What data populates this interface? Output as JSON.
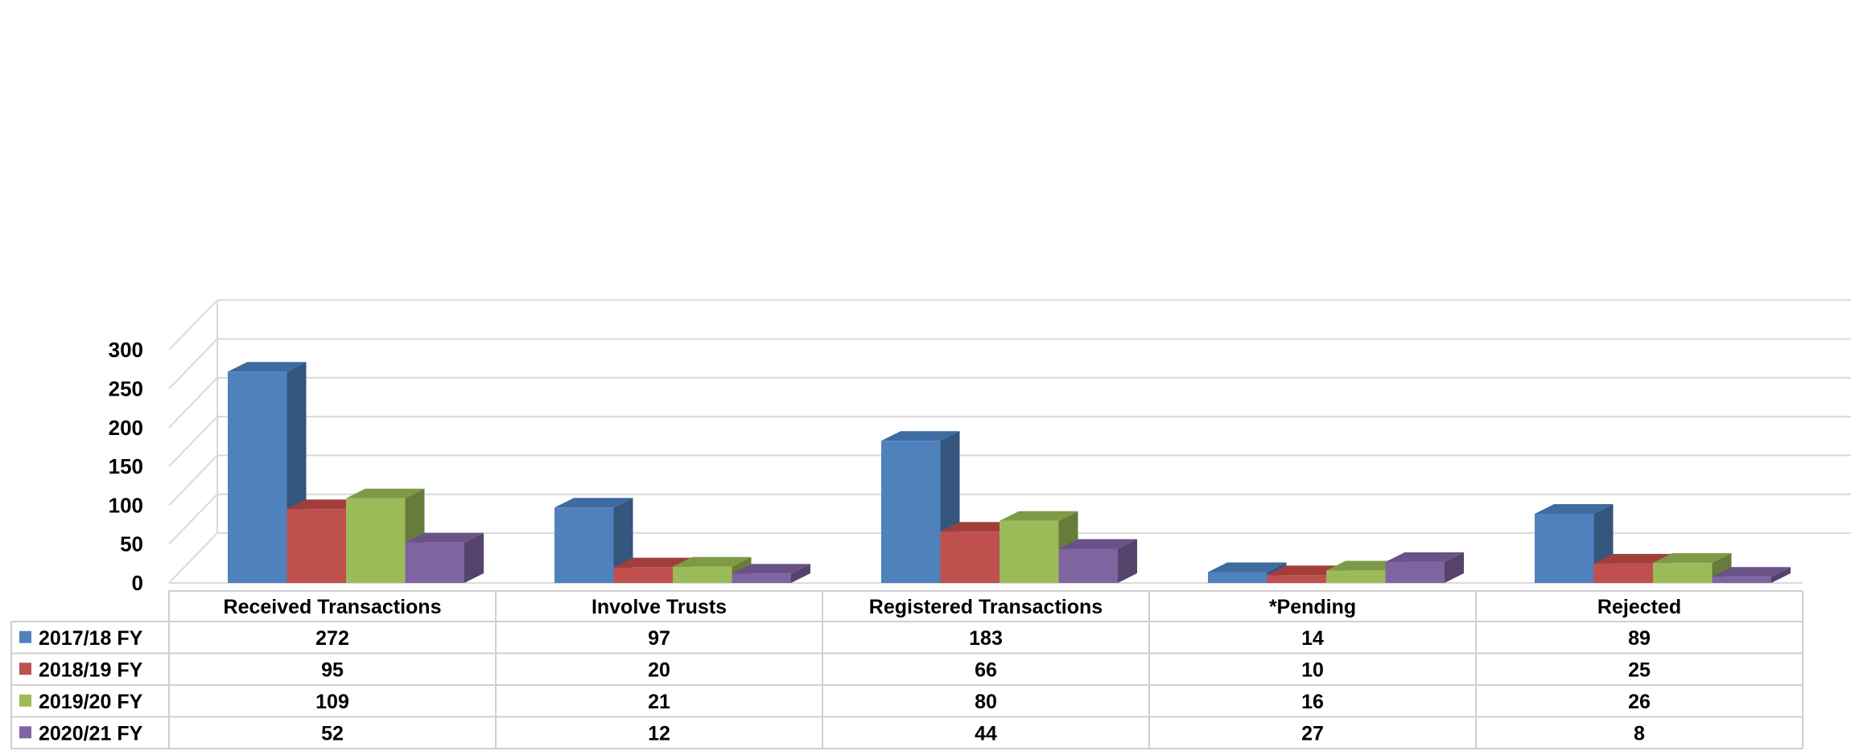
{
  "chart_data": {
    "type": "bar",
    "style": "3d-clustered-column-with-data-table",
    "categories": [
      "Received Transactions",
      "Involve Trusts",
      "Registered Transactions",
      "*Pending",
      "Rejected"
    ],
    "series": [
      {
        "name": "2017/18 FY",
        "values": [
          272,
          97,
          183,
          14,
          89
        ],
        "color": "#4F81BD",
        "side": "#34567E",
        "top": "#3E6BA0"
      },
      {
        "name": "2018/19 FY",
        "values": [
          95,
          20,
          66,
          10,
          25
        ],
        "color": "#C0504D",
        "side": "#7F3533",
        "top": "#A13E3B"
      },
      {
        "name": "2019/20 FY",
        "values": [
          109,
          21,
          80,
          16,
          26
        ],
        "color": "#9BBB59",
        "side": "#677C3B",
        "top": "#7F9A46"
      },
      {
        "name": "2020/21 FY",
        "values": [
          52,
          12,
          44,
          27,
          8
        ],
        "color": "#8064A2",
        "side": "#55436B",
        "top": "#6A5289"
      }
    ],
    "yticks": [
      "0",
      "50",
      "100",
      "150",
      "200",
      "250",
      "300"
    ],
    "ylim": [
      0,
      300
    ],
    "grid": true,
    "legend": "data-table-left",
    "title": "",
    "xlabel": "",
    "ylabel": ""
  }
}
